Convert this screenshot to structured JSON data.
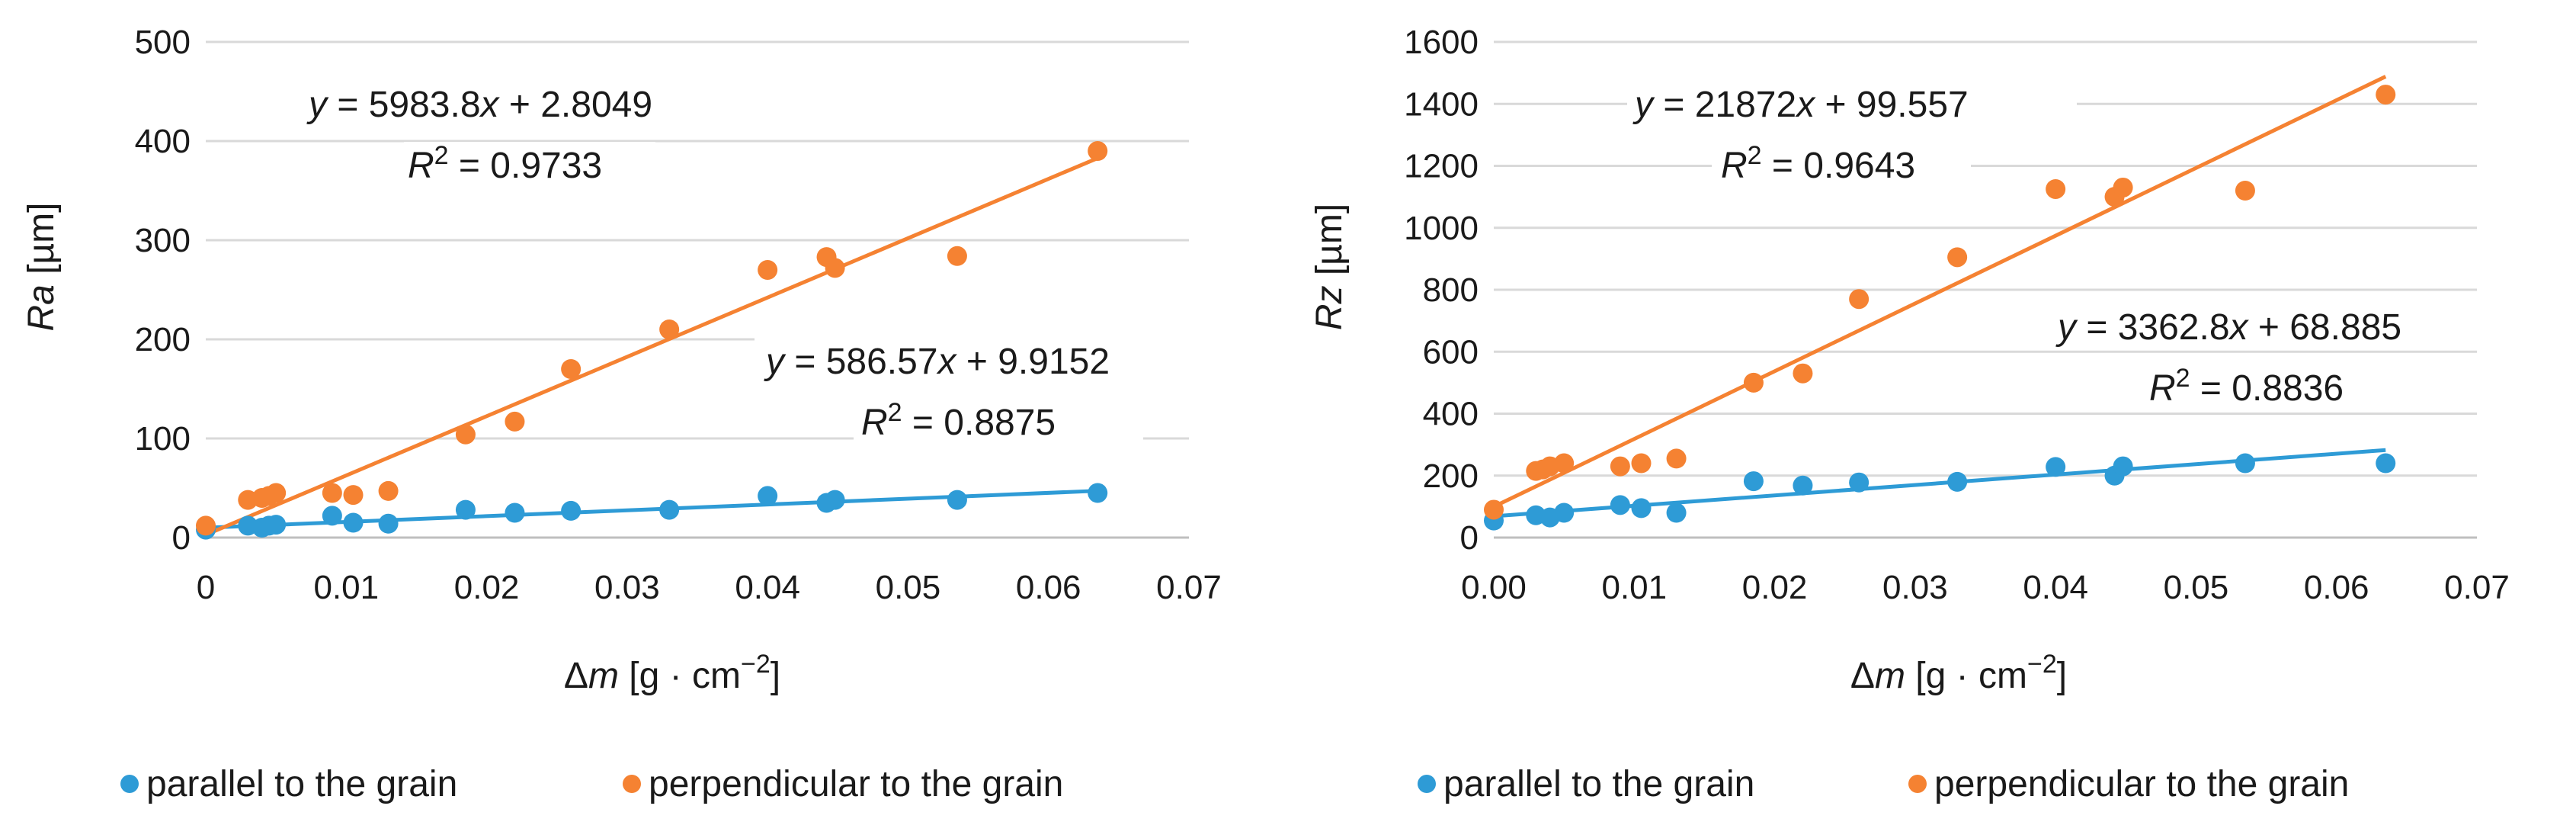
{
  "chart_data": [
    {
      "type": "scatter",
      "ylabel_var": "Ra",
      "ylabel_unit": " [µm]",
      "xlabel_var": "Δm",
      "xlabel_unit_pre": " [g · cm",
      "xlabel_unit_sup": "−2",
      "xlabel_unit_post": "]",
      "xlim": [
        0,
        0.07
      ],
      "ylim": [
        0,
        500
      ],
      "xticks": [
        "0",
        "0.01",
        "0.02",
        "0.03",
        "0.04",
        "0.05",
        "0.06",
        "0.07"
      ],
      "yticks": [
        "0",
        "100",
        "200",
        "300",
        "400",
        "500"
      ],
      "grid": true,
      "legend_position": "bottom",
      "series": [
        {
          "name": "parallel to the grain",
          "color": "#2e9bd6",
          "x": [
            0.0,
            0.003,
            0.004,
            0.0045,
            0.005,
            0.009,
            0.0105,
            0.013,
            0.0185,
            0.022,
            0.026,
            0.033,
            0.04,
            0.0442,
            0.0448,
            0.0535,
            0.0635
          ],
          "y": [
            8,
            12,
            10,
            12,
            13,
            22,
            15,
            14,
            28,
            25,
            27,
            28,
            42,
            35,
            38,
            38,
            45
          ],
          "trendline": {
            "slope": 586.57,
            "intercept": 9.9152,
            "x_range": [
              0,
              0.0635
            ]
          },
          "equation": {
            "y": "y",
            "eq": " = 586.57",
            "x": "x",
            "rest": " + 9.9152"
          },
          "r2": {
            "r": "R",
            "sup": "2",
            "rest": " = 0.8875"
          }
        },
        {
          "name": "perpendicular to the grain",
          "color": "#f58232",
          "x": [
            0.0,
            0.003,
            0.004,
            0.0045,
            0.005,
            0.009,
            0.0105,
            0.013,
            0.0185,
            0.022,
            0.026,
            0.033,
            0.04,
            0.0442,
            0.0448,
            0.0535,
            0.0635
          ],
          "y": [
            12,
            38,
            40,
            42,
            45,
            45,
            43,
            47,
            104,
            117,
            170,
            210,
            270,
            283,
            272,
            284,
            390
          ],
          "trendline": {
            "slope": 5983.8,
            "intercept": 2.8049,
            "x_range": [
              0,
              0.0635
            ]
          },
          "equation": {
            "y": "y",
            "eq": " = 5983.8",
            "x": "x",
            "rest": " + 2.8049"
          },
          "r2": {
            "r": "R",
            "sup": "2",
            "rest": " = 0.9733"
          }
        }
      ]
    },
    {
      "type": "scatter",
      "ylabel_var": "Rz",
      "ylabel_unit": " [µm]",
      "xlabel_var": "Δm",
      "xlabel_unit_pre": " [g · cm",
      "xlabel_unit_sup": "−2",
      "xlabel_unit_post": "]",
      "xlim": [
        0,
        0.07
      ],
      "ylim": [
        0,
        1600
      ],
      "xticks": [
        "0.00",
        "0.01",
        "0.02",
        "0.03",
        "0.04",
        "0.05",
        "0.06",
        "0.07"
      ],
      "yticks": [
        "0",
        "200",
        "400",
        "600",
        "800",
        "1000",
        "1200",
        "1400",
        "1600"
      ],
      "grid": true,
      "legend_position": "bottom",
      "series": [
        {
          "name": "parallel to the grain",
          "color": "#2e9bd6",
          "x": [
            0.0,
            0.003,
            0.004,
            0.005,
            0.009,
            0.0105,
            0.013,
            0.0185,
            0.022,
            0.026,
            0.033,
            0.04,
            0.0442,
            0.0448,
            0.0535,
            0.0635
          ],
          "y": [
            55,
            72,
            65,
            80,
            105,
            95,
            80,
            182,
            168,
            178,
            180,
            228,
            200,
            230,
            240,
            240
          ],
          "trendline": {
            "slope": 3362.8,
            "intercept": 68.885,
            "x_range": [
              0,
              0.0635
            ]
          },
          "equation": {
            "y": "y",
            "eq": " = 3362.8",
            "x": "x",
            "rest": " + 68.885"
          },
          "r2": {
            "r": "R",
            "sup": "2",
            "rest": " = 0.8836"
          }
        },
        {
          "name": "perpendicular to the grain",
          "color": "#f58232",
          "x": [
            0.0,
            0.003,
            0.0035,
            0.004,
            0.005,
            0.009,
            0.0105,
            0.013,
            0.0185,
            0.022,
            0.026,
            0.033,
            0.04,
            0.0442,
            0.0448,
            0.0535,
            0.0635
          ],
          "y": [
            90,
            215,
            220,
            230,
            240,
            230,
            240,
            255,
            500,
            530,
            770,
            905,
            1125,
            1100,
            1130,
            1120,
            1430
          ],
          "trendline": {
            "slope": 21872,
            "intercept": 99.557,
            "x_range": [
              0,
              0.0635
            ]
          },
          "equation": {
            "y": "y",
            "eq": " = 21872",
            "x": "x",
            "rest": " + 99.557"
          },
          "r2": {
            "r": "R",
            "sup": "2",
            "rest": " = 0.9643"
          }
        }
      ]
    }
  ]
}
